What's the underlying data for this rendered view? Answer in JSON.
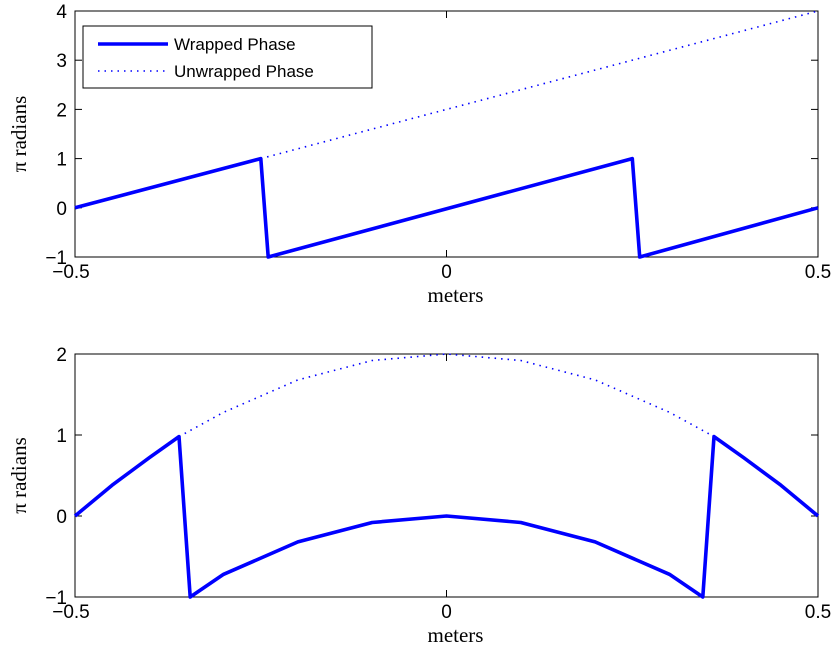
{
  "chart_data": [
    {
      "type": "line",
      "xlabel": "meters",
      "ylabel": "π radians",
      "xlim": [
        -0.5,
        0.5
      ],
      "ylim": [
        -1,
        4
      ],
      "xticks": [
        -0.5,
        0,
        0.5
      ],
      "xtick_labels": [
        "−0.5",
        "0",
        "0.5"
      ],
      "yticks": [
        -1,
        0,
        1,
        2,
        3,
        4
      ],
      "ytick_labels": [
        "−1",
        "0",
        "1",
        "2",
        "3",
        "4"
      ],
      "legend": {
        "placement": "top-left"
      },
      "series": [
        {
          "name": "Wrapped Phase",
          "style": "solid",
          "color": "#0000ff",
          "x": [
            -0.5,
            -0.25,
            -0.24,
            0.25,
            0.26,
            0.5
          ],
          "y": [
            0,
            1,
            -1,
            1,
            -1,
            0
          ]
        },
        {
          "name": "Unwrapped Phase",
          "style": "dotted",
          "color": "#0000ff",
          "x": [
            -0.25,
            0.5
          ],
          "y": [
            1,
            4
          ]
        }
      ]
    },
    {
      "type": "line",
      "xlabel": "meters",
      "ylabel": "π radians",
      "xlim": [
        -0.5,
        0.5
      ],
      "ylim": [
        -1,
        2
      ],
      "xticks": [
        -0.5,
        0,
        0.5
      ],
      "xtick_labels": [
        "−0.5",
        "0",
        "0.5"
      ],
      "yticks": [
        -1,
        0,
        1,
        2
      ],
      "ytick_labels": [
        "−1",
        "0",
        "1",
        "2"
      ],
      "series": [
        {
          "name": "Wrapped Phase",
          "style": "solid",
          "color": "#0000ff",
          "x": [
            -0.5,
            -0.45,
            -0.4,
            -0.36,
            -0.345,
            -0.3,
            -0.2,
            -0.1,
            0,
            0.1,
            0.2,
            0.3,
            0.345,
            0.36,
            0.4,
            0.45,
            0.5
          ],
          "y": [
            0,
            0.38,
            0.72,
            0.98,
            -1,
            -0.72,
            -0.32,
            -0.08,
            0,
            -0.08,
            -0.32,
            -0.72,
            -1,
            0.98,
            0.72,
            0.38,
            0
          ]
        },
        {
          "name": "Unwrapped Phase",
          "style": "dotted",
          "color": "#0000ff",
          "x": [
            -0.36,
            -0.3,
            -0.2,
            -0.1,
            0,
            0.1,
            0.2,
            0.3,
            0.36
          ],
          "y": [
            0.98,
            1.28,
            1.68,
            1.92,
            2,
            1.92,
            1.68,
            1.28,
            0.98
          ]
        }
      ]
    }
  ]
}
